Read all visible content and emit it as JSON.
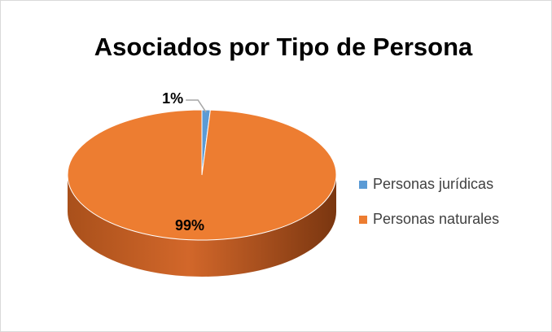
{
  "chart_data": {
    "type": "pie",
    "title": "Asociados por Tipo de Persona",
    "categories": [
      "Personas jurídicas",
      "Personas naturales"
    ],
    "values": [
      1,
      99
    ],
    "value_labels": [
      "1%",
      "99%"
    ],
    "colors": [
      "#5b9bd5",
      "#ed7d31"
    ],
    "legend": "right"
  }
}
